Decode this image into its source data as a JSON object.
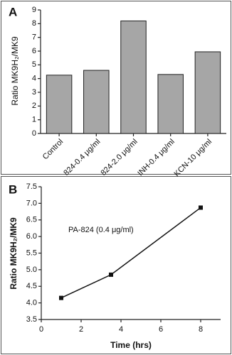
{
  "chart_data": [
    {
      "type": "bar",
      "panel_label": "A",
      "ylabel": "Ratio MK9H₂/MK9",
      "categories": [
        "Control",
        "824-0.4 μg/ml",
        "824-2.0 μg/ml",
        "INH-0.4 μg/ml",
        "KCN-10 μg/ml"
      ],
      "values": [
        4.25,
        4.6,
        8.2,
        4.3,
        5.95
      ],
      "color": "#a6a6a6",
      "ylim": [
        0,
        9
      ],
      "yticks": [
        0,
        1,
        2,
        3,
        4,
        5,
        6,
        7,
        8,
        9
      ]
    },
    {
      "type": "line",
      "panel_label": "B",
      "ylabel": "Ratio MK9H₂/MK9",
      "xlabel": "Time (hrs)",
      "annotation": "PA-824 (0.4 μg/ml)",
      "x": [
        1,
        3.5,
        8
      ],
      "y": [
        4.15,
        4.85,
        6.87
      ],
      "color": "#111111",
      "xlim": [
        0,
        9
      ],
      "xticks": [
        0,
        2,
        4,
        6,
        8
      ],
      "ylim": [
        3.5,
        7.5
      ],
      "yticks": [
        3.5,
        {
          "value": 4,
          "label": "4.0"
        },
        4.5,
        {
          "value": 5,
          "label": "5.0"
        },
        5.5,
        {
          "value": 6,
          "label": "6.0"
        },
        6.5,
        {
          "value": 7,
          "label": "7.0"
        },
        7.5
      ]
    }
  ]
}
